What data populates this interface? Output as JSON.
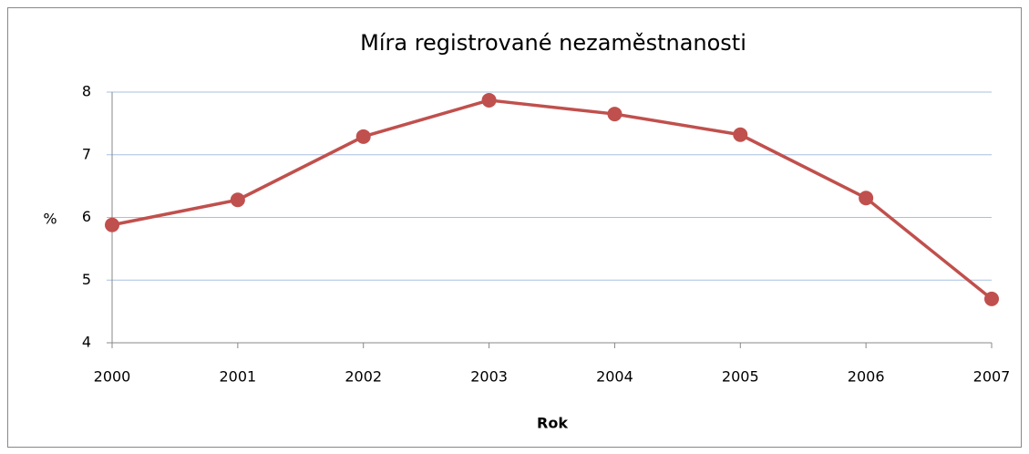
{
  "chart_data": {
    "type": "line",
    "title": "Míra registrované nezaměstnanosti",
    "x_label": "Rok",
    "y_label": "%",
    "categories": [
      "2000",
      "2001",
      "2002",
      "2003",
      "2004",
      "2005",
      "2006",
      "2007"
    ],
    "values": [
      5.88,
      6.28,
      7.29,
      7.87,
      7.65,
      7.32,
      6.31,
      4.7
    ],
    "color": "#c0504d",
    "ylim": [
      4,
      8
    ],
    "yticks": [
      4,
      5,
      6,
      7,
      8
    ],
    "grid": true
  }
}
